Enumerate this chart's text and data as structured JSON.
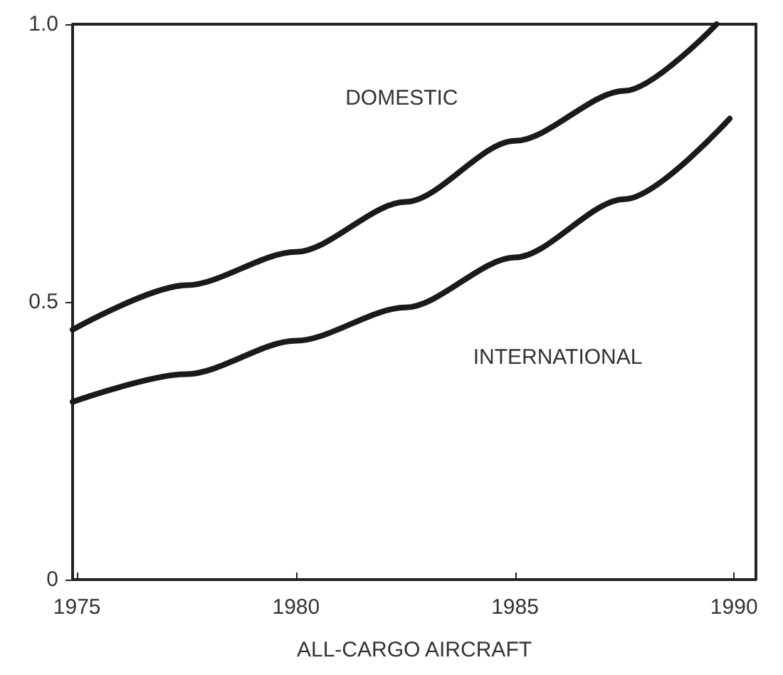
{
  "chart_data": {
    "type": "line",
    "xlabel": "ALL-CARGO AIRCRAFT",
    "xlim": [
      1974.9,
      1990.5
    ],
    "xticks": [
      1975,
      1980,
      1985,
      1990
    ],
    "ylim": [
      0,
      1.0
    ],
    "yticks": [
      0,
      0.5,
      {
        "value": 1.0,
        "label": "1.0"
      }
    ],
    "grid": false,
    "legend": false,
    "marker": "none",
    "line_style": "solid",
    "series": [
      {
        "name": "DOMESTIC",
        "color": "#1a1a1a",
        "x": [
          1974.9,
          1977.5,
          1980,
          1982.5,
          1985,
          1987.5,
          1989.6
        ],
        "values": [
          0.45,
          0.53,
          0.59,
          0.68,
          0.79,
          0.88,
          1.0
        ]
      },
      {
        "name": "INTERNATIONAL",
        "color": "#1a1a1a",
        "x": [
          1974.9,
          1977.5,
          1980,
          1982.5,
          1985,
          1987.5,
          1989.9
        ],
        "values": [
          0.32,
          0.37,
          0.43,
          0.49,
          0.58,
          0.685,
          0.83
        ]
      }
    ]
  }
}
